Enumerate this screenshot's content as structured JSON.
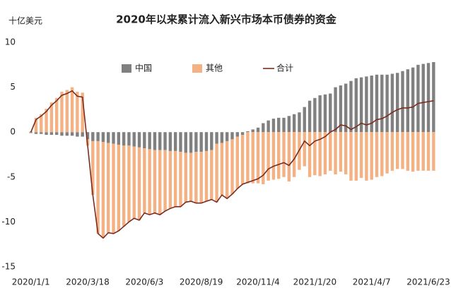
{
  "chart_data": {
    "type": "bar_line",
    "title": "2020年以来累计流入新兴市场本币债券的资金",
    "y_axis_label": "十亿美元",
    "categories": [
      "2020/1/1",
      null,
      null,
      null,
      null,
      null,
      null,
      null,
      null,
      null,
      null,
      "2020/3/18",
      null,
      null,
      null,
      null,
      null,
      null,
      null,
      null,
      null,
      null,
      "2020/6/3",
      null,
      null,
      null,
      null,
      null,
      null,
      null,
      null,
      null,
      null,
      "2020/8/19",
      null,
      null,
      null,
      null,
      null,
      null,
      null,
      null,
      null,
      null,
      "2020/11/4",
      null,
      null,
      null,
      null,
      null,
      null,
      null,
      null,
      null,
      null,
      "2021/1/20",
      null,
      null,
      null,
      null,
      null,
      null,
      null,
      null,
      null,
      null,
      "2021/4/7",
      null,
      null,
      null,
      null,
      null,
      null,
      null,
      null,
      null,
      null,
      "2021/6/23",
      null
    ],
    "series": [
      {
        "name": "中国",
        "kind": "bar",
        "color": "#808080",
        "values": [
          -0.1,
          -0.2,
          -0.2,
          -0.3,
          -0.3,
          -0.3,
          -0.4,
          -0.4,
          -0.4,
          -0.5,
          -0.5,
          -0.8,
          -1.0,
          -1.0,
          -1.1,
          -1.2,
          -1.3,
          -1.4,
          -1.5,
          -1.5,
          -1.6,
          -1.7,
          -1.8,
          -1.9,
          -2.0,
          -2.0,
          -2.0,
          -2.1,
          -2.1,
          -2.2,
          -2.3,
          -2.3,
          -2.2,
          -2.2,
          -2.1,
          -2.0,
          -1.3,
          -1.2,
          -1.0,
          -0.8,
          -0.5,
          -0.3,
          0.1,
          0.3,
          0.5,
          1.0,
          1.3,
          1.5,
          1.6,
          1.6,
          1.8,
          2.0,
          2.2,
          2.8,
          3.5,
          3.8,
          4.1,
          4.2,
          4.3,
          5.0,
          5.2,
          5.4,
          5.7,
          6.0,
          6.1,
          6.2,
          6.3,
          6.4,
          6.4,
          6.4,
          6.5,
          6.6,
          6.8,
          7.0,
          7.2,
          7.5,
          7.6,
          7.7,
          7.8
        ]
      },
      {
        "name": "其他",
        "kind": "bar",
        "color": "#f4b183",
        "values": [
          0.1,
          1.6,
          2.0,
          2.6,
          3.3,
          3.8,
          4.5,
          4.7,
          5.0,
          4.5,
          4.4,
          -0.7,
          -6.0,
          -10.3,
          -10.7,
          -10.0,
          -10.0,
          -9.6,
          -9.0,
          -8.5,
          -8.0,
          -8.1,
          -7.2,
          -7.3,
          -7.0,
          -7.2,
          -6.8,
          -6.4,
          -6.2,
          -6.1,
          -5.5,
          -5.4,
          -5.7,
          -5.7,
          -5.6,
          -5.5,
          -6.5,
          -5.8,
          -6.4,
          -6.1,
          -5.8,
          -5.5,
          -5.7,
          -5.7,
          -5.7,
          -5.8,
          -5.4,
          -5.3,
          -5.2,
          -5.0,
          -5.5,
          -5.0,
          -4.2,
          -3.8,
          -5.0,
          -4.8,
          -4.9,
          -4.7,
          -4.3,
          -4.7,
          -4.4,
          -4.7,
          -5.4,
          -5.4,
          -5.1,
          -5.4,
          -5.3,
          -5.0,
          -4.9,
          -4.6,
          -4.3,
          -4.1,
          -4.1,
          -4.3,
          -4.4,
          -4.3,
          -4.3,
          -4.3,
          -4.3
        ]
      },
      {
        "name": "合计",
        "kind": "line",
        "color": "#7b2c1f",
        "values": [
          0.0,
          1.4,
          1.8,
          2.3,
          3.0,
          3.5,
          4.1,
          4.3,
          4.6,
          4.0,
          3.9,
          -1.5,
          -7.0,
          -11.3,
          -11.8,
          -11.2,
          -11.3,
          -11.0,
          -10.5,
          -10.0,
          -9.6,
          -9.8,
          -9.0,
          -9.2,
          -9.0,
          -9.2,
          -8.8,
          -8.5,
          -8.3,
          -8.3,
          -7.8,
          -7.7,
          -7.9,
          -7.9,
          -7.7,
          -7.5,
          -7.8,
          -7.0,
          -7.4,
          -6.9,
          -6.3,
          -5.8,
          -5.6,
          -5.4,
          -5.2,
          -4.8,
          -4.1,
          -3.8,
          -3.6,
          -3.4,
          -3.7,
          -3.0,
          -2.0,
          -1.0,
          -1.5,
          -1.0,
          -0.8,
          -0.5,
          0.0,
          0.3,
          0.8,
          0.7,
          0.3,
          0.6,
          1.0,
          0.8,
          1.0,
          1.4,
          1.5,
          1.8,
          2.2,
          2.5,
          2.7,
          2.7,
          2.8,
          3.2,
          3.3,
          3.4,
          3.5
        ]
      }
    ],
    "ylim": [
      -15,
      10
    ],
    "yticks": [
      -15,
      -10,
      -5,
      0,
      5,
      10
    ],
    "grid": false,
    "legend": "top"
  }
}
